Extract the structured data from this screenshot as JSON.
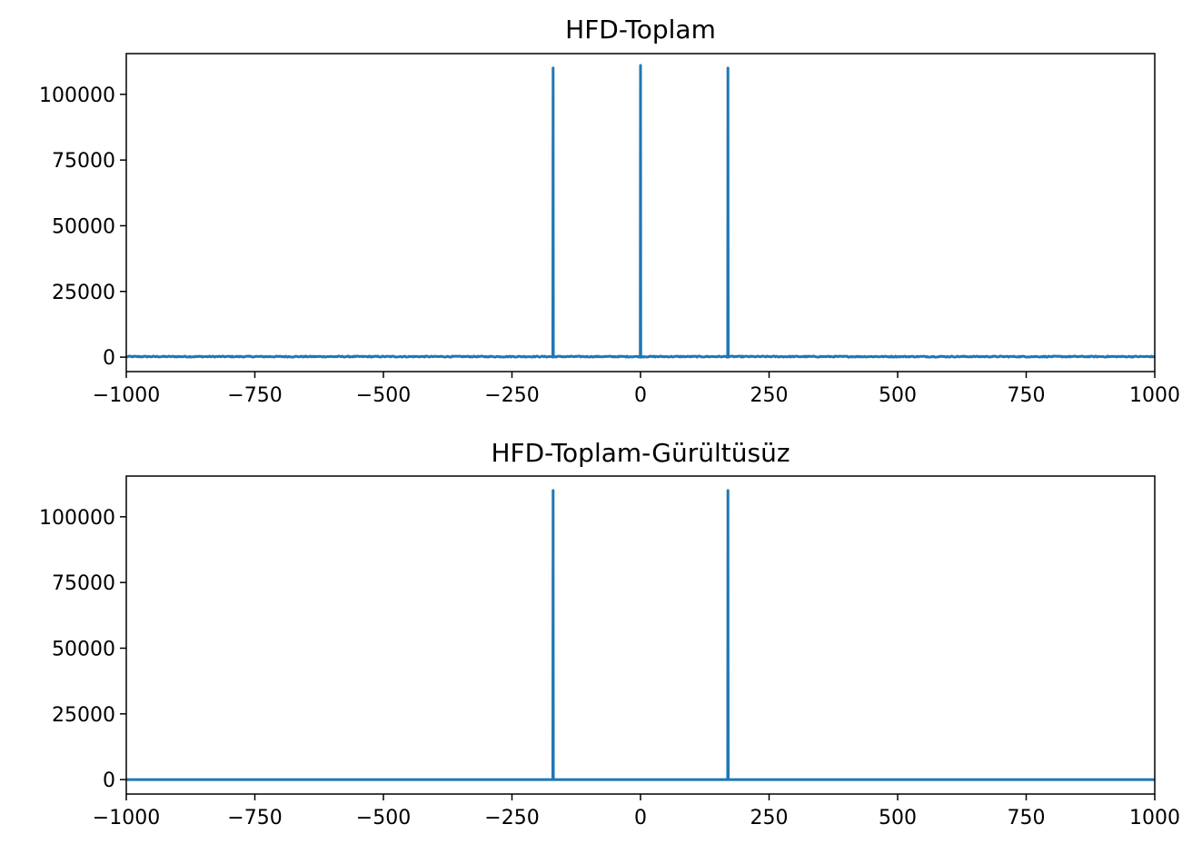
{
  "chart_data": [
    {
      "type": "line",
      "title": "HFD-Toplam",
      "xlabel": "",
      "ylabel": "",
      "xlim": [
        -1000,
        1000
      ],
      "ylim": [
        -5500,
        115500
      ],
      "grid": false,
      "xticks": [
        -1000,
        -750,
        -500,
        -250,
        0,
        250,
        500,
        750,
        1000
      ],
      "xtick_labels": [
        "−1000",
        "−750",
        "−500",
        "−250",
        "0",
        "250",
        "500",
        "750",
        "1000"
      ],
      "yticks": [
        0,
        25000,
        50000,
        75000,
        100000
      ],
      "ytick_labels": [
        "0",
        "25000",
        "50000",
        "75000",
        "100000"
      ],
      "series": [
        {
          "color": "#1f77b4",
          "noise_floor": 400,
          "peaks": [
            {
              "x": -170,
              "y": 110000
            },
            {
              "x": 0,
              "y": 111000
            },
            {
              "x": 170,
              "y": 110000
            }
          ]
        }
      ]
    },
    {
      "type": "line",
      "title": "HFD-Toplam-Gürültüsüz",
      "xlabel": "",
      "ylabel": "",
      "xlim": [
        -1000,
        1000
      ],
      "ylim": [
        -5500,
        115500
      ],
      "grid": false,
      "xticks": [
        -1000,
        -750,
        -500,
        -250,
        0,
        250,
        500,
        750,
        1000
      ],
      "xtick_labels": [
        "−1000",
        "−750",
        "−500",
        "−250",
        "0",
        "250",
        "500",
        "750",
        "1000"
      ],
      "yticks": [
        0,
        25000,
        50000,
        75000,
        100000
      ],
      "ytick_labels": [
        "0",
        "25000",
        "50000",
        "75000",
        "100000"
      ],
      "series": [
        {
          "color": "#1f77b4",
          "noise_floor": 0,
          "peaks": [
            {
              "x": -170,
              "y": 110000
            },
            {
              "x": 170,
              "y": 110000
            }
          ]
        }
      ]
    }
  ]
}
